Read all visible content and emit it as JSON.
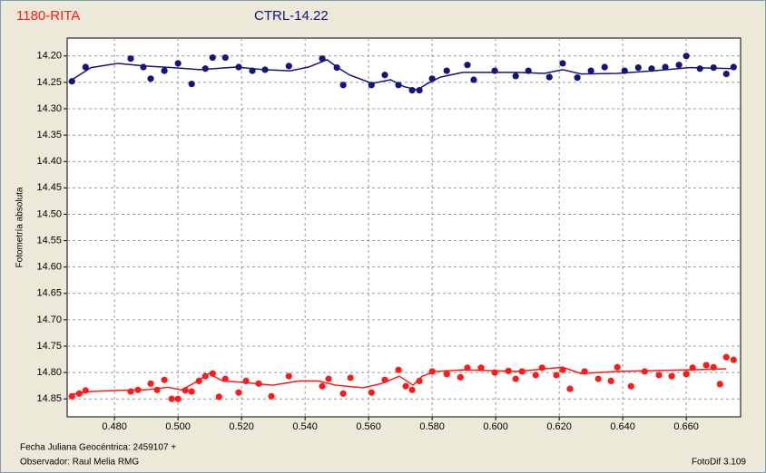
{
  "chart_data": {
    "type": "scatter",
    "y_label": "Fotometría absoluta",
    "footer": [
      "Fecha Juliana Geocéntrica: 2459107 +",
      "Observador: Raul Melia RMG"
    ],
    "software": "FotoDif 3.109",
    "xlim": [
      0.4651,
      0.6771
    ],
    "ylim": [
      14.166,
      14.884
    ],
    "y_inverted": true,
    "grid": true,
    "xticks": [
      {
        "value": 0.48,
        "label": "0.480"
      },
      {
        "value": 0.5,
        "label": "0.500"
      },
      {
        "value": 0.52,
        "label": "0.520"
      },
      {
        "value": 0.54,
        "label": "0.540"
      },
      {
        "value": 0.56,
        "label": "0.560"
      },
      {
        "value": 0.58,
        "label": "0.580"
      },
      {
        "value": 0.6,
        "label": "0.600"
      },
      {
        "value": 0.62,
        "label": "0.620"
      },
      {
        "value": 0.64,
        "label": "0.640"
      },
      {
        "value": 0.66,
        "label": "0.660"
      }
    ],
    "yticks": [
      {
        "value": 14.2,
        "label": "14.20"
      },
      {
        "value": 14.25,
        "label": "14.25"
      },
      {
        "value": 14.3,
        "label": "14.30"
      },
      {
        "value": 14.35,
        "label": "14.35"
      },
      {
        "value": 14.4,
        "label": "14.40"
      },
      {
        "value": 14.45,
        "label": "14.45"
      },
      {
        "value": 14.5,
        "label": "14.50"
      },
      {
        "value": 14.55,
        "label": "14.55"
      },
      {
        "value": 14.6,
        "label": "14.60"
      },
      {
        "value": 14.65,
        "label": "14.65"
      },
      {
        "value": 14.7,
        "label": "14.70"
      },
      {
        "value": 14.75,
        "label": "14.75"
      },
      {
        "value": 14.8,
        "label": "14.80"
      },
      {
        "value": 14.85,
        "label": "14.85"
      }
    ],
    "series": [
      {
        "name": "1180-RITA",
        "color": "#ff1a1a",
        "x": [
          0.4666,
          0.4689,
          0.4709,
          0.4851,
          0.4874,
          0.4914,
          0.4934,
          0.4957,
          0.498,
          0.5,
          0.5023,
          0.5043,
          0.5066,
          0.5086,
          0.5109,
          0.5129,
          0.5149,
          0.5191,
          0.5214,
          0.5254,
          0.5294,
          0.5349,
          0.5454,
          0.5474,
          0.552,
          0.5543,
          0.5609,
          0.5651,
          0.5694,
          0.5717,
          0.5737,
          0.576,
          0.58,
          0.5846,
          0.5889,
          0.5911,
          0.5954,
          0.5997,
          0.604,
          0.6063,
          0.6083,
          0.6126,
          0.6146,
          0.6191,
          0.6211,
          0.6234,
          0.628,
          0.6323,
          0.6363,
          0.6383,
          0.6426,
          0.6469,
          0.6514,
          0.6554,
          0.66,
          0.662,
          0.6663,
          0.6686,
          0.6706,
          0.6726,
          0.6749
        ],
        "values": [
          14.845,
          14.84,
          14.834,
          14.836,
          14.833,
          14.821,
          14.833,
          14.814,
          14.85,
          14.85,
          14.834,
          14.836,
          14.816,
          14.807,
          14.802,
          14.846,
          14.812,
          14.838,
          14.816,
          14.821,
          14.845,
          14.807,
          14.826,
          14.812,
          14.84,
          14.81,
          14.838,
          14.814,
          14.795,
          14.826,
          14.833,
          14.816,
          14.798,
          14.803,
          14.809,
          14.791,
          14.791,
          14.8,
          14.797,
          14.812,
          14.798,
          14.805,
          14.791,
          14.805,
          14.795,
          14.831,
          14.798,
          14.812,
          14.816,
          14.79,
          14.826,
          14.798,
          14.805,
          14.807,
          14.803,
          14.791,
          14.786,
          14.79,
          14.822,
          14.771,
          14.776
        ],
        "fit": {
          "x": [
            0.4666,
            0.4726,
            0.4811,
            0.4897,
            0.4969,
            0.5011,
            0.5054,
            0.5097,
            0.514,
            0.5211,
            0.5297,
            0.5383,
            0.544,
            0.5497,
            0.5583,
            0.564,
            0.5697,
            0.574,
            0.5769,
            0.5811,
            0.5897,
            0.6069,
            0.6211,
            0.6269,
            0.6383,
            0.6611,
            0.6726
          ],
          "values": [
            14.841,
            14.836,
            14.834,
            14.833,
            14.828,
            14.833,
            14.819,
            14.802,
            14.816,
            14.819,
            14.824,
            14.816,
            14.816,
            14.824,
            14.829,
            14.821,
            14.807,
            14.824,
            14.807,
            14.798,
            14.795,
            14.798,
            14.79,
            14.802,
            14.798,
            14.795,
            14.793
          ]
        }
      },
      {
        "name": "CTRL-14.22",
        "color": "#14147a",
        "x": [
          0.4666,
          0.4709,
          0.4851,
          0.4891,
          0.4914,
          0.4957,
          0.5,
          0.5043,
          0.5086,
          0.5109,
          0.5149,
          0.5191,
          0.5234,
          0.5274,
          0.5349,
          0.5454,
          0.55,
          0.552,
          0.5609,
          0.5651,
          0.5694,
          0.5737,
          0.576,
          0.58,
          0.5846,
          0.5911,
          0.5931,
          0.5997,
          0.6063,
          0.6103,
          0.6169,
          0.6211,
          0.6257,
          0.63,
          0.6343,
          0.6406,
          0.6449,
          0.6491,
          0.6534,
          0.6577,
          0.66,
          0.6643,
          0.6686,
          0.6726,
          0.6749
        ],
        "values": [
          14.248,
          14.221,
          14.205,
          14.221,
          14.243,
          14.228,
          14.214,
          14.253,
          14.224,
          14.203,
          14.203,
          14.221,
          14.228,
          14.226,
          14.219,
          14.205,
          14.222,
          14.255,
          14.255,
          14.236,
          14.255,
          14.265,
          14.265,
          14.243,
          14.228,
          14.217,
          14.245,
          14.228,
          14.238,
          14.228,
          14.24,
          14.214,
          14.241,
          14.228,
          14.221,
          14.228,
          14.222,
          14.224,
          14.221,
          14.217,
          14.2,
          14.224,
          14.222,
          14.234,
          14.221
        ],
        "fit": {
          "x": [
            0.4666,
            0.4726,
            0.4811,
            0.4897,
            0.4983,
            0.5069,
            0.5183,
            0.5269,
            0.5354,
            0.5411,
            0.5469,
            0.5503,
            0.554,
            0.5611,
            0.5669,
            0.5711,
            0.5754,
            0.5783,
            0.5826,
            0.5897,
            0.5983,
            0.6069,
            0.6154,
            0.6211,
            0.6269,
            0.6383,
            0.6497,
            0.6611,
            0.6749
          ],
          "values": [
            14.245,
            14.222,
            14.214,
            14.219,
            14.222,
            14.226,
            14.221,
            14.226,
            14.228,
            14.221,
            14.207,
            14.222,
            14.236,
            14.252,
            14.245,
            14.258,
            14.264,
            14.253,
            14.24,
            14.231,
            14.231,
            14.231,
            14.233,
            14.226,
            14.234,
            14.233,
            14.228,
            14.222,
            14.224
          ]
        }
      }
    ]
  }
}
